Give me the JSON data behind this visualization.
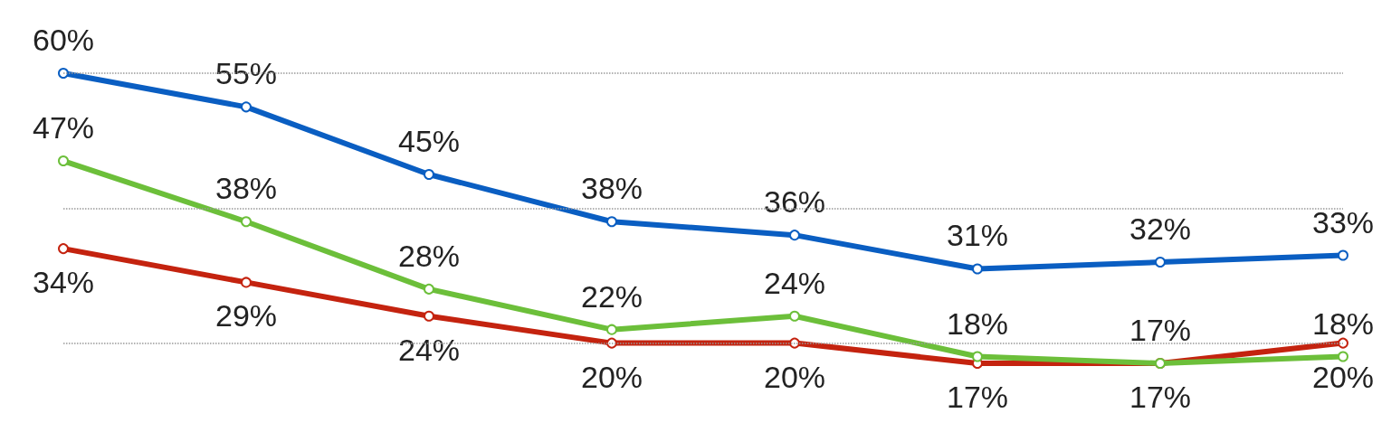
{
  "chart_data": {
    "type": "line",
    "categories": [
      null,
      null,
      null,
      null,
      null,
      null,
      null,
      null
    ],
    "series": [
      {
        "color": "#0a5ec2",
        "values": [
          60,
          55,
          45,
          38,
          36,
          31,
          32,
          33
        ],
        "value_labels": [
          "60%",
          "55%",
          "45%",
          "38%",
          "36%",
          "31%",
          "32%",
          "33%"
        ]
      },
      {
        "color": "#c4230f",
        "values": [
          34,
          29,
          24,
          20,
          20,
          17,
          17,
          20
        ],
        "value_labels": [
          "34%",
          "29%",
          "24%",
          "20%",
          "20%",
          "17%",
          "17%",
          "20%"
        ]
      },
      {
        "color": "#6cbf3a",
        "values": [
          47,
          38,
          28,
          22,
          24,
          18,
          17,
          18
        ],
        "value_labels": [
          "47%",
          "38%",
          "28%",
          "22%",
          "24%",
          "18%",
          "17%",
          "18%"
        ]
      }
    ],
    "ref_lines": [
      {
        "axis": "y",
        "value": 20,
        "color": "#999999",
        "line_style": "dotted"
      },
      {
        "axis": "y",
        "value": 40,
        "color": "#999999",
        "line_style": "dotted"
      },
      {
        "axis": "y",
        "value": 60,
        "color": "#999999",
        "line_style": "dotted"
      }
    ],
    "marker": "circle",
    "line_style": "solid"
  }
}
